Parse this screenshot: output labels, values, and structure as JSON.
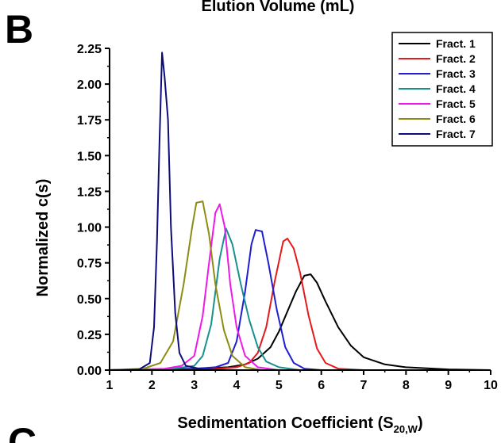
{
  "panel_labels": {
    "top": "B",
    "bottom": "C"
  },
  "top_axis_title": "Elution Volume (mL)",
  "chart_data": {
    "type": "line",
    "title": "",
    "xlabel": {
      "main": "Sedimentation Coefficient (S",
      "sub": "20,W",
      "close": ")"
    },
    "ylabel": "Normalized c(s)",
    "xlim": [
      1,
      10
    ],
    "ylim": [
      0,
      2.25
    ],
    "xticks": [
      1,
      2,
      3,
      4,
      5,
      6,
      7,
      8,
      9,
      10
    ],
    "yticks": [
      0,
      0.25,
      0.5,
      0.75,
      1.0,
      1.25,
      1.5,
      1.75,
      2.0,
      2.25
    ],
    "ytick_labels": [
      "0.00",
      "0.25",
      "0.50",
      "0.75",
      "1.00",
      "1.25",
      "1.50",
      "1.75",
      "2.00",
      "2.25"
    ],
    "legend_position": "top-right",
    "grid": false,
    "series": [
      {
        "name": "Fract. 1",
        "color": "#000000",
        "points": [
          [
            1,
            0
          ],
          [
            3,
            0.01
          ],
          [
            3.8,
            0.02
          ],
          [
            4.2,
            0.04
          ],
          [
            4.5,
            0.08
          ],
          [
            4.8,
            0.16
          ],
          [
            5.0,
            0.27
          ],
          [
            5.2,
            0.41
          ],
          [
            5.4,
            0.55
          ],
          [
            5.6,
            0.66
          ],
          [
            5.75,
            0.67
          ],
          [
            5.9,
            0.61
          ],
          [
            6.1,
            0.48
          ],
          [
            6.4,
            0.3
          ],
          [
            6.7,
            0.17
          ],
          [
            7.0,
            0.09
          ],
          [
            7.5,
            0.04
          ],
          [
            8.0,
            0.02
          ],
          [
            9.0,
            0.005
          ],
          [
            10,
            0
          ]
        ]
      },
      {
        "name": "Fract. 2",
        "color": "#e31a1c",
        "points": [
          [
            1,
            0
          ],
          [
            3.5,
            0.01
          ],
          [
            4.0,
            0.02
          ],
          [
            4.3,
            0.05
          ],
          [
            4.5,
            0.12
          ],
          [
            4.7,
            0.3
          ],
          [
            4.9,
            0.62
          ],
          [
            5.1,
            0.9
          ],
          [
            5.2,
            0.92
          ],
          [
            5.35,
            0.85
          ],
          [
            5.5,
            0.68
          ],
          [
            5.7,
            0.38
          ],
          [
            5.9,
            0.15
          ],
          [
            6.1,
            0.05
          ],
          [
            6.4,
            0.01
          ],
          [
            7,
            0
          ],
          [
            10,
            0
          ]
        ]
      },
      {
        "name": "Fract. 3",
        "color": "#1f1fcf",
        "points": [
          [
            1,
            0
          ],
          [
            3.0,
            0.01
          ],
          [
            3.5,
            0.02
          ],
          [
            3.8,
            0.05
          ],
          [
            4.0,
            0.2
          ],
          [
            4.2,
            0.55
          ],
          [
            4.35,
            0.88
          ],
          [
            4.45,
            0.98
          ],
          [
            4.6,
            0.97
          ],
          [
            4.75,
            0.75
          ],
          [
            4.95,
            0.42
          ],
          [
            5.15,
            0.16
          ],
          [
            5.35,
            0.05
          ],
          [
            5.6,
            0.01
          ],
          [
            6,
            0
          ],
          [
            10,
            0
          ]
        ]
      },
      {
        "name": "Fract. 4",
        "color": "#17918f",
        "points": [
          [
            1,
            0
          ],
          [
            2.5,
            0.01
          ],
          [
            3.0,
            0.03
          ],
          [
            3.2,
            0.1
          ],
          [
            3.4,
            0.32
          ],
          [
            3.6,
            0.78
          ],
          [
            3.75,
            0.99
          ],
          [
            3.9,
            0.88
          ],
          [
            4.1,
            0.6
          ],
          [
            4.3,
            0.35
          ],
          [
            4.5,
            0.16
          ],
          [
            4.7,
            0.06
          ],
          [
            5.0,
            0.02
          ],
          [
            5.5,
            0
          ],
          [
            10,
            0
          ]
        ]
      },
      {
        "name": "Fract. 5",
        "color": "#f018e8",
        "points": [
          [
            1,
            0
          ],
          [
            2.3,
            0.01
          ],
          [
            2.7,
            0.03
          ],
          [
            3.0,
            0.1
          ],
          [
            3.2,
            0.38
          ],
          [
            3.35,
            0.75
          ],
          [
            3.5,
            1.1
          ],
          [
            3.6,
            1.16
          ],
          [
            3.72,
            1.0
          ],
          [
            3.85,
            0.6
          ],
          [
            4.0,
            0.3
          ],
          [
            4.2,
            0.1
          ],
          [
            4.5,
            0.02
          ],
          [
            5,
            0
          ],
          [
            10,
            0
          ]
        ]
      },
      {
        "name": "Fract. 6",
        "color": "#8c8c12",
        "points": [
          [
            1,
            0
          ],
          [
            1.8,
            0.01
          ],
          [
            2.2,
            0.05
          ],
          [
            2.5,
            0.2
          ],
          [
            2.75,
            0.6
          ],
          [
            2.95,
            1.0
          ],
          [
            3.05,
            1.17
          ],
          [
            3.2,
            1.18
          ],
          [
            3.35,
            0.95
          ],
          [
            3.5,
            0.6
          ],
          [
            3.7,
            0.28
          ],
          [
            3.9,
            0.1
          ],
          [
            4.2,
            0.02
          ],
          [
            4.6,
            0
          ],
          [
            10,
            0
          ]
        ]
      },
      {
        "name": "Fract. 7",
        "color": "#0d0d7a",
        "points": [
          [
            1,
            0
          ],
          [
            1.7,
            0.005
          ],
          [
            1.95,
            0.05
          ],
          [
            2.05,
            0.3
          ],
          [
            2.12,
            0.9
          ],
          [
            2.18,
            1.6
          ],
          [
            2.24,
            2.22
          ],
          [
            2.3,
            2.05
          ],
          [
            2.38,
            1.75
          ],
          [
            2.45,
            1.0
          ],
          [
            2.55,
            0.4
          ],
          [
            2.65,
            0.12
          ],
          [
            2.8,
            0.03
          ],
          [
            3.2,
            0.005
          ],
          [
            4,
            0
          ],
          [
            10,
            0
          ]
        ]
      }
    ]
  }
}
